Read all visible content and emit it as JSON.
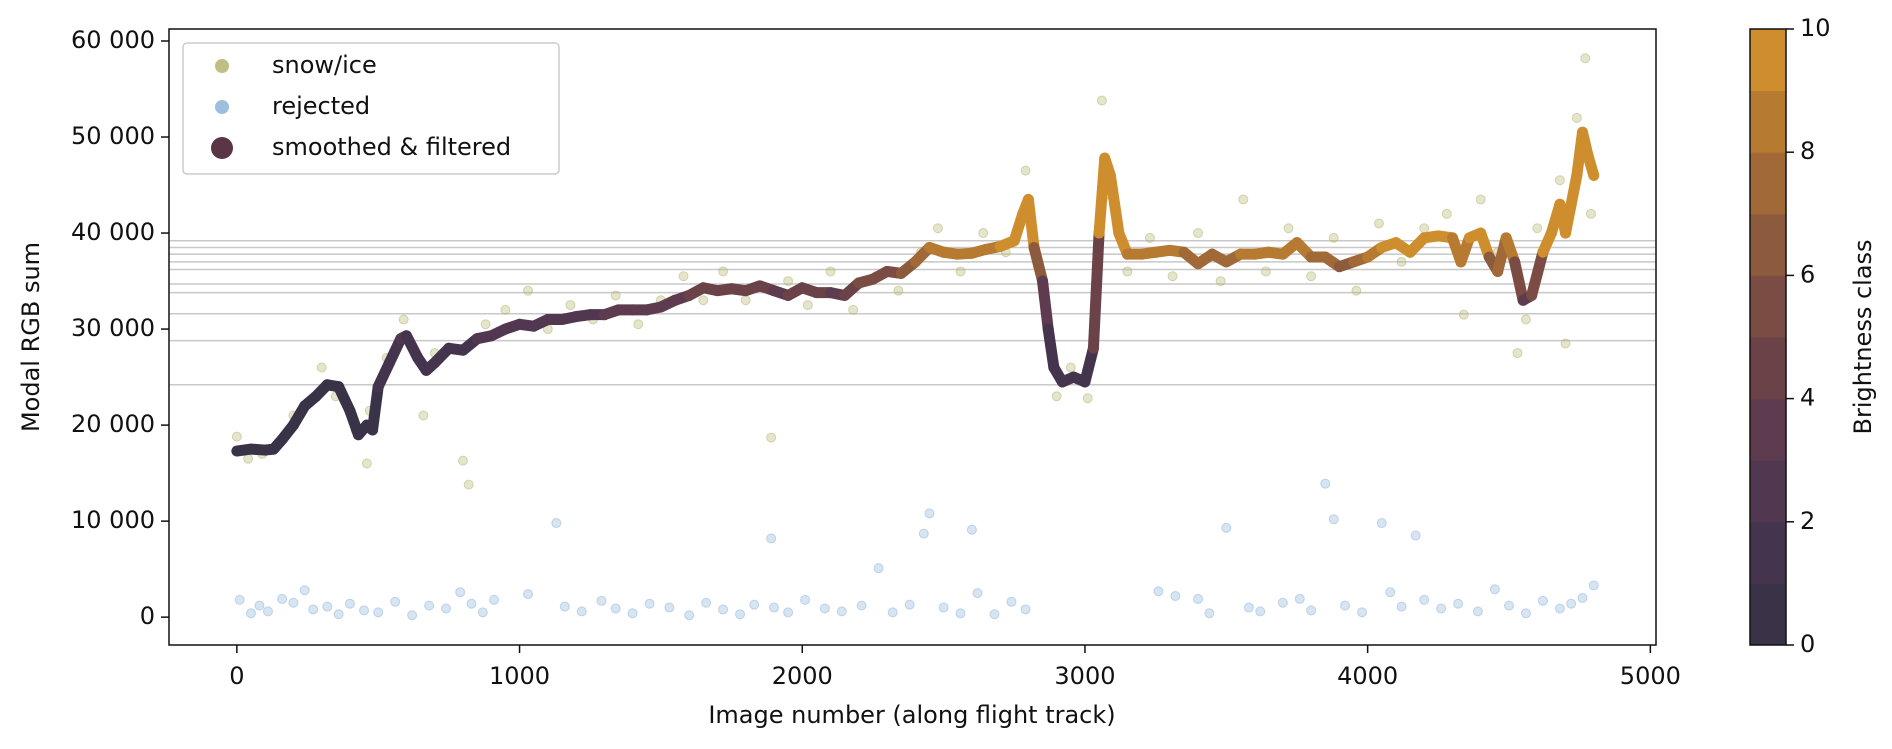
{
  "chart_data": {
    "type": "scatter",
    "x_label": "Image number (along flight track)",
    "y_label": "Modal RGB sum",
    "xlim": [
      -240,
      5020
    ],
    "ylim": [
      -2900,
      61250
    ],
    "xticks": [
      0,
      1000,
      2000,
      3000,
      4000,
      5000
    ],
    "yticks": [
      0,
      {
        "value": 10000,
        "label": "10 000"
      },
      {
        "value": 20000,
        "label": "20 000"
      },
      {
        "value": 30000,
        "label": "30 000"
      },
      {
        "value": 40000,
        "label": "40 000"
      },
      {
        "value": 50000,
        "label": "50 000"
      },
      {
        "value": 60000,
        "label": "60 000"
      }
    ],
    "hlines": [
      24200,
      28800,
      31600,
      33800,
      34700,
      36200,
      37000,
      37800,
      38500,
      39200
    ],
    "legend": "upper left",
    "series": [
      {
        "name": "snow/ice",
        "color": "#b3b46c",
        "x": [
          0,
          40,
          90,
          150,
          200,
          260,
          300,
          350,
          420,
          460,
          470,
          530,
          590,
          660,
          700,
          800,
          820,
          880,
          950,
          1030,
          1100,
          1180,
          1260,
          1340,
          1420,
          1500,
          1580,
          1650,
          1720,
          1800,
          1890,
          1950,
          2020,
          2100,
          2180,
          2260,
          2340,
          2420,
          2480,
          2560,
          2640,
          2720,
          2790,
          2810,
          2900,
          2950,
          3010,
          3060,
          3080,
          3150,
          3230,
          3310,
          3400,
          3480,
          3560,
          3640,
          3720,
          3800,
          3880,
          3960,
          4040,
          4120,
          4200,
          4280,
          4340,
          4400,
          4460,
          4530,
          4560,
          4600,
          4680,
          4700,
          4740,
          4770,
          4790
        ],
        "values": [
          18800,
          16500,
          17000,
          18200,
          21000,
          22500,
          26000,
          23000,
          19500,
          16000,
          21500,
          27000,
          31000,
          21000,
          27500,
          16300,
          13800,
          30500,
          32000,
          34000,
          30000,
          32500,
          31000,
          33500,
          30500,
          33000,
          35500,
          33000,
          36000,
          33000,
          18700,
          35000,
          32500,
          36000,
          32000,
          35500,
          34000,
          38000,
          40500,
          36000,
          40000,
          38000,
          46500,
          41000,
          23000,
          26000,
          22800,
          53800,
          44000,
          36000,
          39500,
          35500,
          40000,
          35000,
          43500,
          36000,
          40500,
          35500,
          39500,
          34000,
          41000,
          37000,
          40500,
          42000,
          31500,
          43500,
          38000,
          27500,
          31000,
          40500,
          45500,
          28500,
          52000,
          58200,
          42000
        ]
      },
      {
        "name": "rejected",
        "color": "#8db3da",
        "x": [
          10,
          50,
          80,
          110,
          160,
          200,
          240,
          270,
          320,
          360,
          400,
          450,
          500,
          560,
          620,
          680,
          740,
          790,
          830,
          870,
          910,
          1030,
          1130,
          1160,
          1220,
          1290,
          1340,
          1400,
          1460,
          1530,
          1600,
          1660,
          1720,
          1780,
          1830,
          1890,
          1900,
          1950,
          2010,
          2080,
          2140,
          2210,
          2270,
          2320,
          2380,
          2430,
          2450,
          2500,
          2560,
          2600,
          2620,
          2680,
          2740,
          2790,
          3260,
          3320,
          3400,
          3440,
          3500,
          3580,
          3620,
          3700,
          3760,
          3800,
          3850,
          3880,
          3920,
          3980,
          4050,
          4080,
          4120,
          4170,
          4200,
          4260,
          4320,
          4390,
          4450,
          4500,
          4560,
          4620,
          4680,
          4720,
          4760,
          4800
        ],
        "values": [
          1800,
          400,
          1200,
          600,
          1900,
          1500,
          2800,
          800,
          1100,
          300,
          1400,
          700,
          500,
          1600,
          200,
          1200,
          900,
          2600,
          1400,
          500,
          1800,
          2400,
          9800,
          1100,
          600,
          1700,
          900,
          400,
          1400,
          1000,
          200,
          1500,
          800,
          300,
          1300,
          8200,
          1000,
          500,
          1800,
          900,
          600,
          1200,
          5100,
          500,
          1300,
          8700,
          10800,
          1000,
          400,
          9100,
          2500,
          300,
          1600,
          800,
          2700,
          2200,
          1900,
          400,
          9300,
          1000,
          600,
          1500,
          1900,
          700,
          13900,
          10200,
          1200,
          500,
          9800,
          2600,
          1100,
          8500,
          1800,
          900,
          1400,
          600,
          2900,
          1200,
          400,
          1700,
          900,
          1400,
          2000,
          3300
        ]
      },
      {
        "name": "smoothed & filtered",
        "color": "#5a3546",
        "line": true,
        "x": [
          0,
          50,
          100,
          130,
          160,
          200,
          240,
          280,
          320,
          360,
          400,
          430,
          460,
          480,
          500,
          540,
          580,
          600,
          640,
          670,
          700,
          750,
          800,
          850,
          900,
          950,
          1000,
          1050,
          1100,
          1150,
          1200,
          1250,
          1300,
          1350,
          1400,
          1450,
          1500,
          1550,
          1600,
          1650,
          1700,
          1750,
          1800,
          1850,
          1900,
          1950,
          2000,
          2050,
          2100,
          2150,
          2200,
          2250,
          2300,
          2350,
          2400,
          2450,
          2500,
          2550,
          2600,
          2650,
          2700,
          2750,
          2780,
          2800,
          2820,
          2850,
          2870,
          2890,
          2920,
          2960,
          3000,
          3030,
          3050,
          3070,
          3090,
          3120,
          3150,
          3200,
          3250,
          3300,
          3350,
          3400,
          3450,
          3500,
          3550,
          3600,
          3650,
          3700,
          3750,
          3800,
          3850,
          3900,
          3950,
          4000,
          4050,
          4100,
          4150,
          4200,
          4250,
          4300,
          4330,
          4360,
          4400,
          4430,
          4460,
          4490,
          4520,
          4550,
          4580,
          4620,
          4650,
          4680,
          4700,
          4720,
          4740,
          4760,
          4780,
          4800
        ],
        "values": [
          17300,
          17500,
          17400,
          17500,
          18500,
          20000,
          22000,
          23000,
          24200,
          24000,
          21500,
          19000,
          20000,
          19500,
          24000,
          26500,
          29000,
          29300,
          27000,
          25700,
          26500,
          28000,
          27800,
          29000,
          29300,
          30000,
          30500,
          30300,
          31000,
          31000,
          31300,
          31500,
          31500,
          32000,
          32000,
          32000,
          32300,
          33000,
          33500,
          34300,
          34000,
          34200,
          34000,
          34500,
          34000,
          33500,
          34300,
          33800,
          33800,
          33500,
          34800,
          35200,
          36000,
          35800,
          37000,
          38500,
          38000,
          37800,
          37900,
          38300,
          38600,
          39200,
          42000,
          43500,
          38500,
          35000,
          30000,
          26000,
          24500,
          25000,
          24500,
          28000,
          40000,
          47800,
          46000,
          40000,
          37800,
          37800,
          38000,
          38200,
          38000,
          36800,
          37800,
          37000,
          37800,
          37800,
          38000,
          37800,
          39000,
          37500,
          37500,
          36500,
          37000,
          37500,
          38500,
          39000,
          38000,
          39500,
          39700,
          39500,
          37000,
          39500,
          40000,
          37500,
          36000,
          39500,
          37000,
          33000,
          33500,
          38000,
          40000,
          43000,
          40000,
          43000,
          46000,
          50500,
          48000,
          46000
        ]
      }
    ],
    "colorbar": {
      "label": "Brightness class",
      "lim": [
        0,
        10
      ],
      "ticks": [
        0,
        2,
        4,
        6,
        8,
        10
      ],
      "colors": [
        "#3a3347",
        "#45344d",
        "#523751",
        "#5f3b50",
        "#6c4249",
        "#7b4c43",
        "#8c5a3d",
        "#a06937",
        "#b67a31",
        "#cf8e2e"
      ]
    }
  }
}
